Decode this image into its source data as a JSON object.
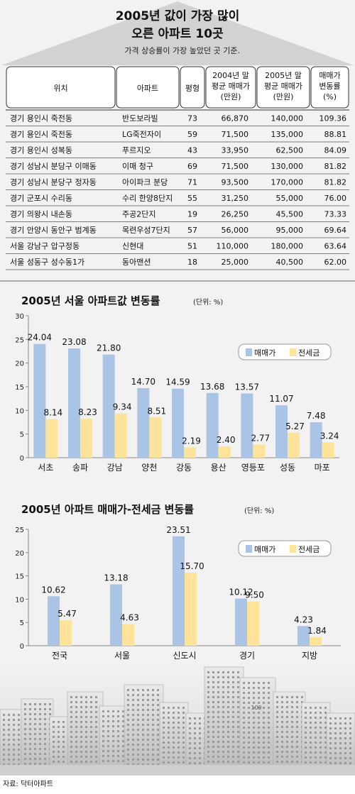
{
  "header": {
    "title_line1": "2005년 값이 가장 많이",
    "title_line2": "오른 아파트 10곳",
    "subtitle": "가격 상승률이 가장 높았던 곳 기준."
  },
  "table": {
    "columns": {
      "location": "위치",
      "apartment": "아파트",
      "size": "평형",
      "price_2004": [
        "2004년 말",
        "평균 매매가",
        "(만원)"
      ],
      "price_2005": [
        "2005년 말",
        "평균 매매가",
        "(만원)"
      ],
      "change": [
        "매매가",
        "변동률",
        "(%)"
      ]
    },
    "rows": [
      {
        "location": "경기 용인시 죽전동",
        "apartment": "반도보라빌",
        "size": "73",
        "price_2004": "66,870",
        "price_2005": "140,000",
        "change": "109.36"
      },
      {
        "location": "경기 용인시 죽전동",
        "apartment": "LG죽전자이",
        "size": "59",
        "price_2004": "71,500",
        "price_2005": "135,000",
        "change": "88.81"
      },
      {
        "location": "경기 용인시 성복동",
        "apartment": "푸르지오",
        "size": "43",
        "price_2004": "33,950",
        "price_2005": "62,500",
        "change": "84.09"
      },
      {
        "location": "경기 성남시 분당구 이매동",
        "apartment": "이매 청구",
        "size": "69",
        "price_2004": "71,500",
        "price_2005": "130,000",
        "change": "81.82"
      },
      {
        "location": "경기 성남시 분당구 정자동",
        "apartment": "아이파크 분당",
        "size": "71",
        "price_2004": "93,500",
        "price_2005": "170,000",
        "change": "81.82"
      },
      {
        "location": "경기 군포시 수리동",
        "apartment": "수리 한양8단지",
        "size": "55",
        "price_2004": "31,250",
        "price_2005": "55,000",
        "change": "76.00"
      },
      {
        "location": "경기 의왕시 내손동",
        "apartment": "주공2단지",
        "size": "19",
        "price_2004": "26,250",
        "price_2005": "45,500",
        "change": "73.33"
      },
      {
        "location": "경기 안양시 동안구 범계동",
        "apartment": "목련우성7단지",
        "size": "57",
        "price_2004": "56,000",
        "price_2005": "95,000",
        "change": "69.64"
      },
      {
        "location": "서울 강남구 압구정동",
        "apartment": "신현대",
        "size": "51",
        "price_2004": "110,000",
        "price_2005": "180,000",
        "change": "63.64"
      },
      {
        "location": "서울 성동구 성수동1가",
        "apartment": "동아맨션",
        "size": "18",
        "price_2004": "25,000",
        "price_2005": "40,500",
        "change": "62.00"
      }
    ]
  },
  "colors": {
    "sale": "#a9c4e4",
    "jeonse": "#fde49a",
    "background": "#f2f2f2",
    "header": "#d2d2d2"
  },
  "chart_data": [
    {
      "type": "bar",
      "title": "2005년 서울 아파트값 변동률",
      "unit": "(단위: %)",
      "categories": [
        "서초",
        "송파",
        "강남",
        "양천",
        "강동",
        "용산",
        "영등포",
        "성동",
        "마포"
      ],
      "series": [
        {
          "name": "매매가",
          "values": [
            24.04,
            23.08,
            21.8,
            14.7,
            14.59,
            13.68,
            13.57,
            11.07,
            7.48
          ]
        },
        {
          "name": "전세금",
          "values": [
            8.14,
            8.23,
            9.34,
            8.51,
            2.19,
            2.4,
            2.77,
            5.27,
            3.24
          ]
        }
      ],
      "labels": [
        [
          "24.04",
          "23.08",
          "21.80",
          "14.70",
          "14.59",
          "13.68",
          "13.57",
          "11.07",
          "7.48"
        ],
        [
          "8.14",
          "8.23",
          "9.34",
          "8.51",
          "2.19",
          "2.40",
          "2.77",
          "5.27",
          "3.24"
        ]
      ],
      "ylim": [
        0,
        30
      ],
      "yticks": [
        0,
        5,
        10,
        15,
        20,
        25,
        30
      ],
      "legend": "top-right"
    },
    {
      "type": "bar",
      "title": "2005년 아파트 매매가-전세금 변동률",
      "unit": "(단위: %)",
      "categories": [
        "전국",
        "서울",
        "신도시",
        "경기",
        "지방"
      ],
      "series": [
        {
          "name": "매매가",
          "values": [
            10.62,
            13.18,
            23.51,
            10.12,
            4.23
          ]
        },
        {
          "name": "전세금",
          "values": [
            5.47,
            4.63,
            15.7,
            9.5,
            1.84
          ]
        }
      ],
      "labels": [
        [
          "10.62",
          "13.18",
          "23.51",
          "10.12",
          "4.23"
        ],
        [
          "5.47",
          "4.63",
          "15.70",
          "9.50",
          "1.84"
        ]
      ],
      "ylim": [
        0,
        25
      ],
      "yticks": [
        0,
        5,
        10,
        15,
        20,
        25
      ],
      "legend": "top-right"
    }
  ],
  "footer": {
    "source": "자료: 닥터아파트",
    "building_sign": "109"
  }
}
